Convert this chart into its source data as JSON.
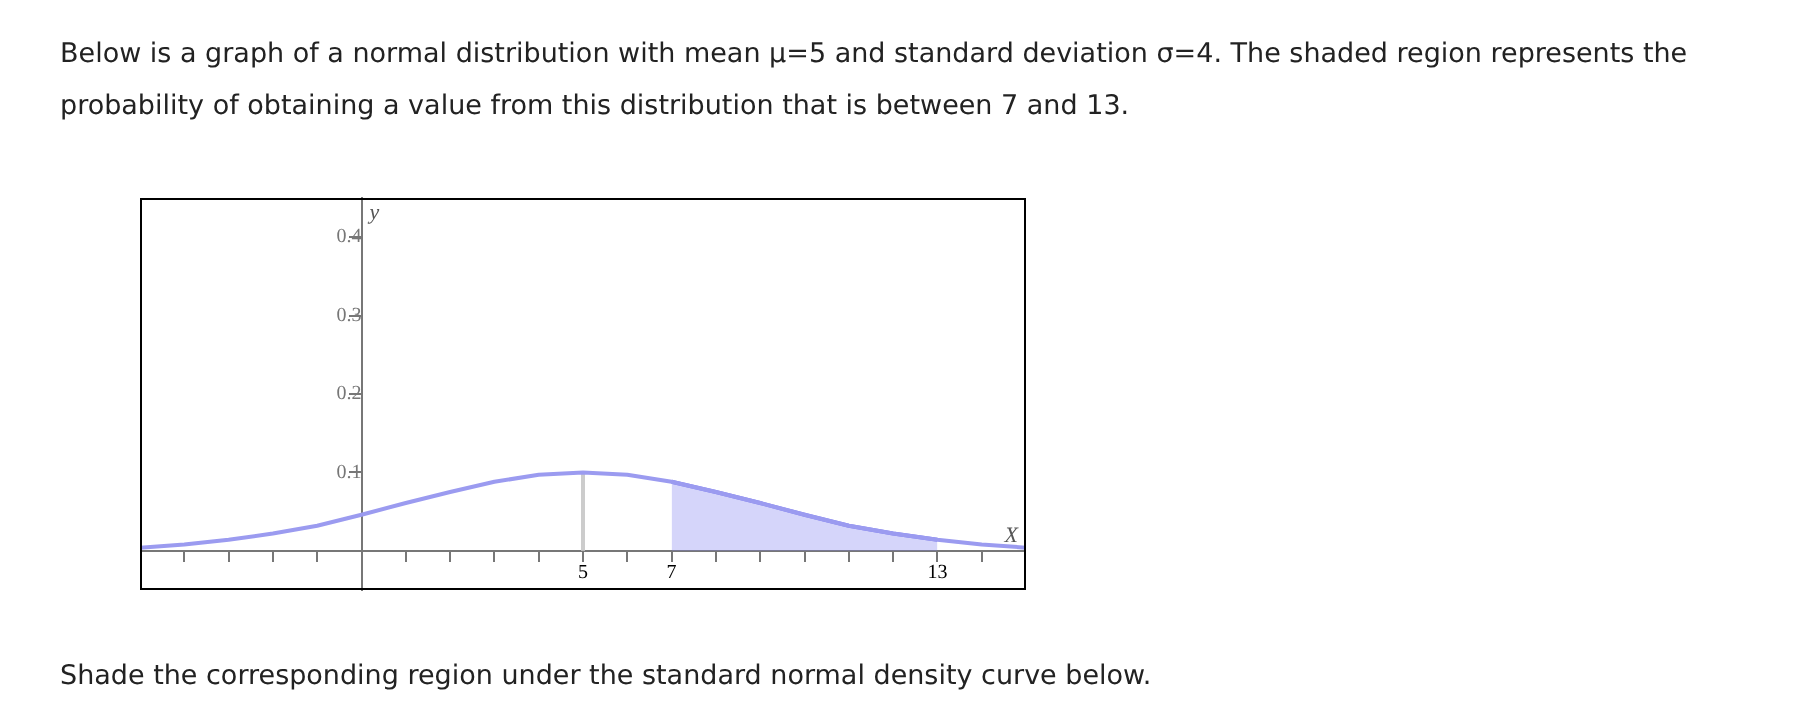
{
  "chart_data": {
    "type": "line",
    "title": "Below is a graph of a normal distribution with mean μ=5 and standard deviation σ=4. The shaded region represents the probability of obtaining a value from this distribution that is between 7 and 13.",
    "xlabel": "X",
    "ylabel": "y",
    "annotations": [
      "Shade the corresponding region under the standard normal density curve below."
    ],
    "x": [
      -5,
      -4,
      -3,
      -2,
      -1,
      0,
      1,
      2,
      3,
      4,
      5,
      6,
      7,
      8,
      9,
      10,
      11,
      12,
      13,
      14,
      15
    ],
    "series": [
      {
        "color": "#9b9bf0",
        "values": [
          0.004,
          0.008,
          0.014,
          0.022,
          0.032,
          0.046,
          0.061,
          0.075,
          0.088,
          0.097,
          0.1,
          0.097,
          0.088,
          0.075,
          0.061,
          0.046,
          0.032,
          0.022,
          0.014,
          0.008,
          0.004
        ]
      },
      {
        "type": "area",
        "color": "#8080f0",
        "x": [
          7,
          8,
          9,
          10,
          11,
          12,
          13
        ],
        "values": [
          0.088,
          0.075,
          0.061,
          0.046,
          0.032,
          0.022,
          0.014
        ]
      },
      {
        "color": "#cccccc",
        "x": [
          5,
          5
        ],
        "values": [
          0,
          0.1
        ]
      }
    ],
    "xlim": [
      -5,
      15
    ],
    "ylim": [
      -0.05,
      0.45
    ],
    "xticks": [
      {
        "value": -4,
        "label": null
      },
      {
        "value": -3,
        "label": null
      },
      {
        "value": -2,
        "label": null
      },
      {
        "value": -1,
        "label": null
      },
      {
        "value": 1,
        "label": null
      },
      {
        "value": 2,
        "label": null
      },
      {
        "value": 3,
        "label": null
      },
      {
        "value": 4,
        "label": null
      },
      5,
      {
        "value": 6,
        "label": null
      },
      7,
      {
        "value": 8,
        "label": null
      },
      {
        "value": 9,
        "label": null
      },
      {
        "value": 10,
        "label": null
      },
      {
        "value": 11,
        "label": null
      },
      {
        "value": 12,
        "label": null
      },
      13,
      {
        "value": 14,
        "label": null
      }
    ],
    "yticks": [
      0.1,
      0.2,
      0.3,
      0.4
    ],
    "grid": false,
    "legend": false,
    "marker": "none",
    "line_style": "solid"
  }
}
